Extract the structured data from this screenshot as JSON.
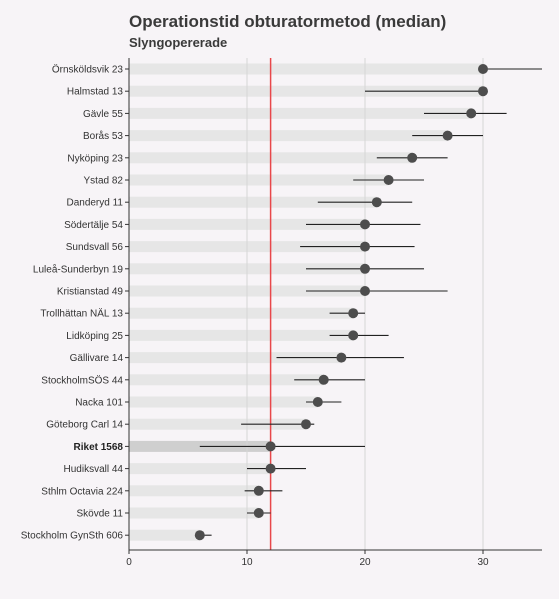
{
  "chart_data": {
    "type": "dot-interval",
    "title": "Operationstid obturatormetod (median)",
    "subtitle": "Slyngopererade",
    "xlim": [
      0,
      35
    ],
    "xticks": [
      0,
      10,
      20,
      30
    ],
    "reference_line": 12,
    "reference_color": "#e8474a",
    "point_color": "#4d4d4d",
    "bar_color": "#e6e6e6",
    "highlight_bar_color": "#cfcfcf",
    "grid": true,
    "categories": [
      {
        "label": "Örnsköldsvik 23",
        "value": 30,
        "low": 30,
        "high": 35,
        "bold": false
      },
      {
        "label": "Halmstad 13",
        "value": 30,
        "low": 20,
        "high": 30,
        "bold": false
      },
      {
        "label": "Gävle 55",
        "value": 29,
        "low": 25,
        "high": 32,
        "bold": false
      },
      {
        "label": "Borås 53",
        "value": 27,
        "low": 24,
        "high": 30,
        "bold": false
      },
      {
        "label": "Nyköping 23",
        "value": 24,
        "low": 21,
        "high": 27,
        "bold": false
      },
      {
        "label": "Ystad 82",
        "value": 22,
        "low": 19,
        "high": 25,
        "bold": false
      },
      {
        "label": "Danderyd 11",
        "value": 21,
        "low": 16,
        "high": 24,
        "bold": false
      },
      {
        "label": "Södertälje 54",
        "value": 20,
        "low": 15,
        "high": 24.7,
        "bold": false
      },
      {
        "label": "Sundsvall 56",
        "value": 20,
        "low": 14.5,
        "high": 24.2,
        "bold": false
      },
      {
        "label": "Luleå-Sunderbyn 19",
        "value": 20,
        "low": 15,
        "high": 25,
        "bold": false
      },
      {
        "label": "Kristianstad 49",
        "value": 20,
        "low": 15,
        "high": 27,
        "bold": false
      },
      {
        "label": "Trollhättan NÄL 13",
        "value": 19,
        "low": 17,
        "high": 20,
        "bold": false
      },
      {
        "label": "Lidköping 25",
        "value": 19,
        "low": 17,
        "high": 22,
        "bold": false
      },
      {
        "label": "Gällivare 14",
        "value": 18,
        "low": 12.5,
        "high": 23.3,
        "bold": false
      },
      {
        "label": "StockholmSÖS 44",
        "value": 16.5,
        "low": 14,
        "high": 20,
        "bold": false
      },
      {
        "label": "Nacka 101",
        "value": 16,
        "low": 15,
        "high": 18,
        "bold": false
      },
      {
        "label": "Göteborg Carl 14",
        "value": 15,
        "low": 9.5,
        "high": 15.7,
        "bold": false
      },
      {
        "label": "Riket 1568",
        "value": 12,
        "low": 6,
        "high": 20,
        "bold": true
      },
      {
        "label": "Hudiksvall 44",
        "value": 12,
        "low": 10,
        "high": 15,
        "bold": false
      },
      {
        "label": "Sthlm Octavia 224",
        "value": 11,
        "low": 9.8,
        "high": 13,
        "bold": false
      },
      {
        "label": "Skövde 11",
        "value": 11,
        "low": 10,
        "high": 12,
        "bold": false
      },
      {
        "label": "Stockholm GynSth 606",
        "value": 6,
        "low": 6,
        "high": 7,
        "bold": false
      }
    ]
  }
}
